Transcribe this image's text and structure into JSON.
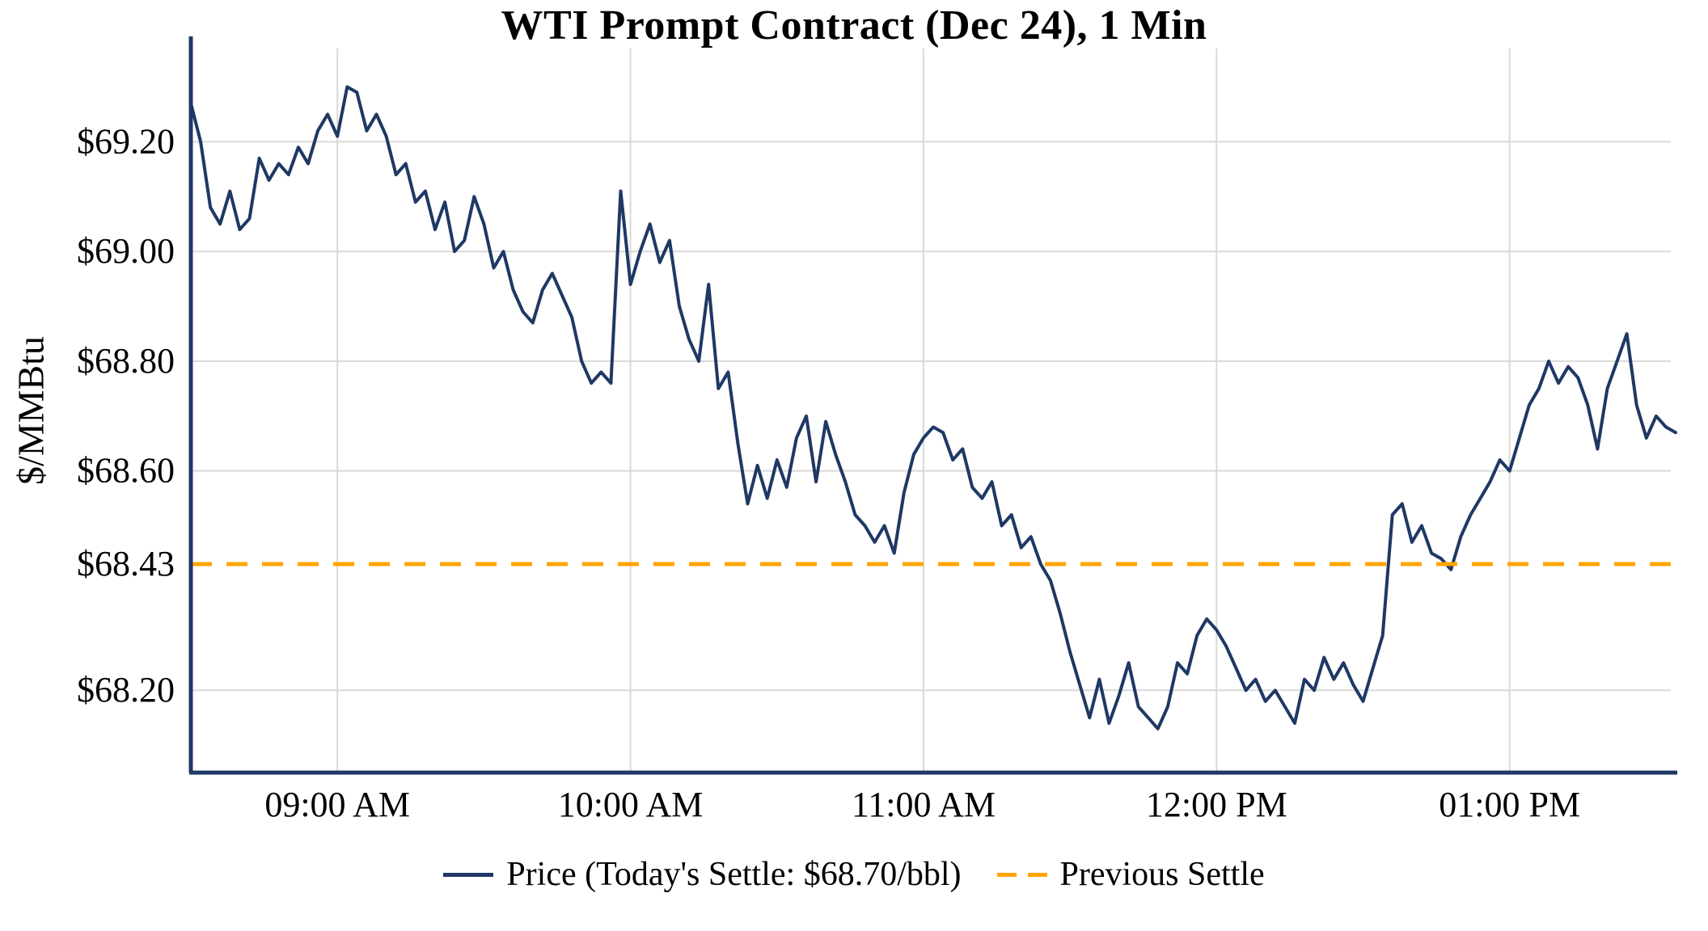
{
  "colors": {
    "price": "#1f3864",
    "previous_settle": "#ffa500",
    "axis": "#1f3864",
    "grid": "#d9d9d9",
    "text": "#000000",
    "background": "#ffffff"
  },
  "chart_data": {
    "type": "line",
    "title": "WTI Prompt Contract (Dec 24), 1 Min",
    "ylabel": "$/MMBtu",
    "xlabel": "",
    "legend": {
      "price_label": "Price (Today's Settle: $68.70/bbl)",
      "previous_settle_label": "Previous Settle"
    },
    "legend_position": "bottom",
    "grid": true,
    "previous_settle": 68.43,
    "todays_settle": 68.7,
    "x_unit": "minutes since chart start (approx. 08:30 AM)",
    "x_start_minute": 0,
    "x_step_minutes": 2,
    "xlim": [
      0,
      303
    ],
    "ylim": [
      68.05,
      69.37
    ],
    "x_ticks": [
      {
        "minute": 30,
        "label": "09:00 AM"
      },
      {
        "minute": 90,
        "label": "10:00 AM"
      },
      {
        "minute": 150,
        "label": "11:00 AM"
      },
      {
        "minute": 210,
        "label": "12:00 PM"
      },
      {
        "minute": 270,
        "label": "01:00 PM"
      }
    ],
    "y_ticks": [
      {
        "value": 69.2,
        "label": "$69.20",
        "grid": true
      },
      {
        "value": 69.0,
        "label": "$69.00",
        "grid": true
      },
      {
        "value": 68.8,
        "label": "$68.80",
        "grid": true
      },
      {
        "value": 68.6,
        "label": "$68.60",
        "grid": true
      },
      {
        "value": 68.43,
        "label": "$68.43",
        "grid": false
      },
      {
        "value": 68.2,
        "label": "$68.20",
        "grid": true
      }
    ],
    "series_name": "Price",
    "values": [
      69.27,
      69.2,
      69.08,
      69.05,
      69.11,
      69.04,
      69.06,
      69.17,
      69.13,
      69.16,
      69.14,
      69.19,
      69.16,
      69.22,
      69.25,
      69.21,
      69.3,
      69.29,
      69.22,
      69.25,
      69.21,
      69.14,
      69.16,
      69.09,
      69.11,
      69.04,
      69.09,
      69.0,
      69.02,
      69.1,
      69.05,
      68.97,
      69.0,
      68.93,
      68.89,
      68.87,
      68.93,
      68.96,
      68.92,
      68.88,
      68.8,
      68.76,
      68.78,
      68.76,
      69.11,
      68.94,
      69.0,
      69.05,
      68.98,
      69.02,
      68.9,
      68.84,
      68.8,
      68.94,
      68.75,
      68.78,
      68.65,
      68.54,
      68.61,
      68.55,
      68.62,
      68.57,
      68.66,
      68.7,
      68.58,
      68.69,
      68.63,
      68.58,
      68.52,
      68.5,
      68.47,
      68.5,
      68.45,
      68.56,
      68.63,
      68.66,
      68.68,
      68.67,
      68.62,
      68.64,
      68.57,
      68.55,
      68.58,
      68.5,
      68.52,
      68.46,
      68.48,
      68.43,
      68.4,
      68.34,
      68.27,
      68.21,
      68.15,
      68.22,
      68.14,
      68.19,
      68.25,
      68.17,
      68.15,
      68.13,
      68.17,
      68.25,
      68.23,
      68.3,
      68.33,
      68.31,
      68.28,
      68.24,
      68.2,
      68.22,
      68.18,
      68.2,
      68.17,
      68.14,
      68.22,
      68.2,
      68.26,
      68.22,
      68.25,
      68.21,
      68.18,
      68.24,
      68.3,
      68.52,
      68.54,
      68.47,
      68.5,
      68.45,
      68.44,
      68.42,
      68.48,
      68.52,
      68.55,
      68.58,
      68.62,
      68.6,
      68.66,
      68.72,
      68.75,
      68.8,
      68.76,
      68.79,
      68.77,
      68.72,
      68.64,
      68.75,
      68.8,
      68.85,
      68.72,
      68.66,
      68.7,
      68.68,
      68.67
    ]
  }
}
